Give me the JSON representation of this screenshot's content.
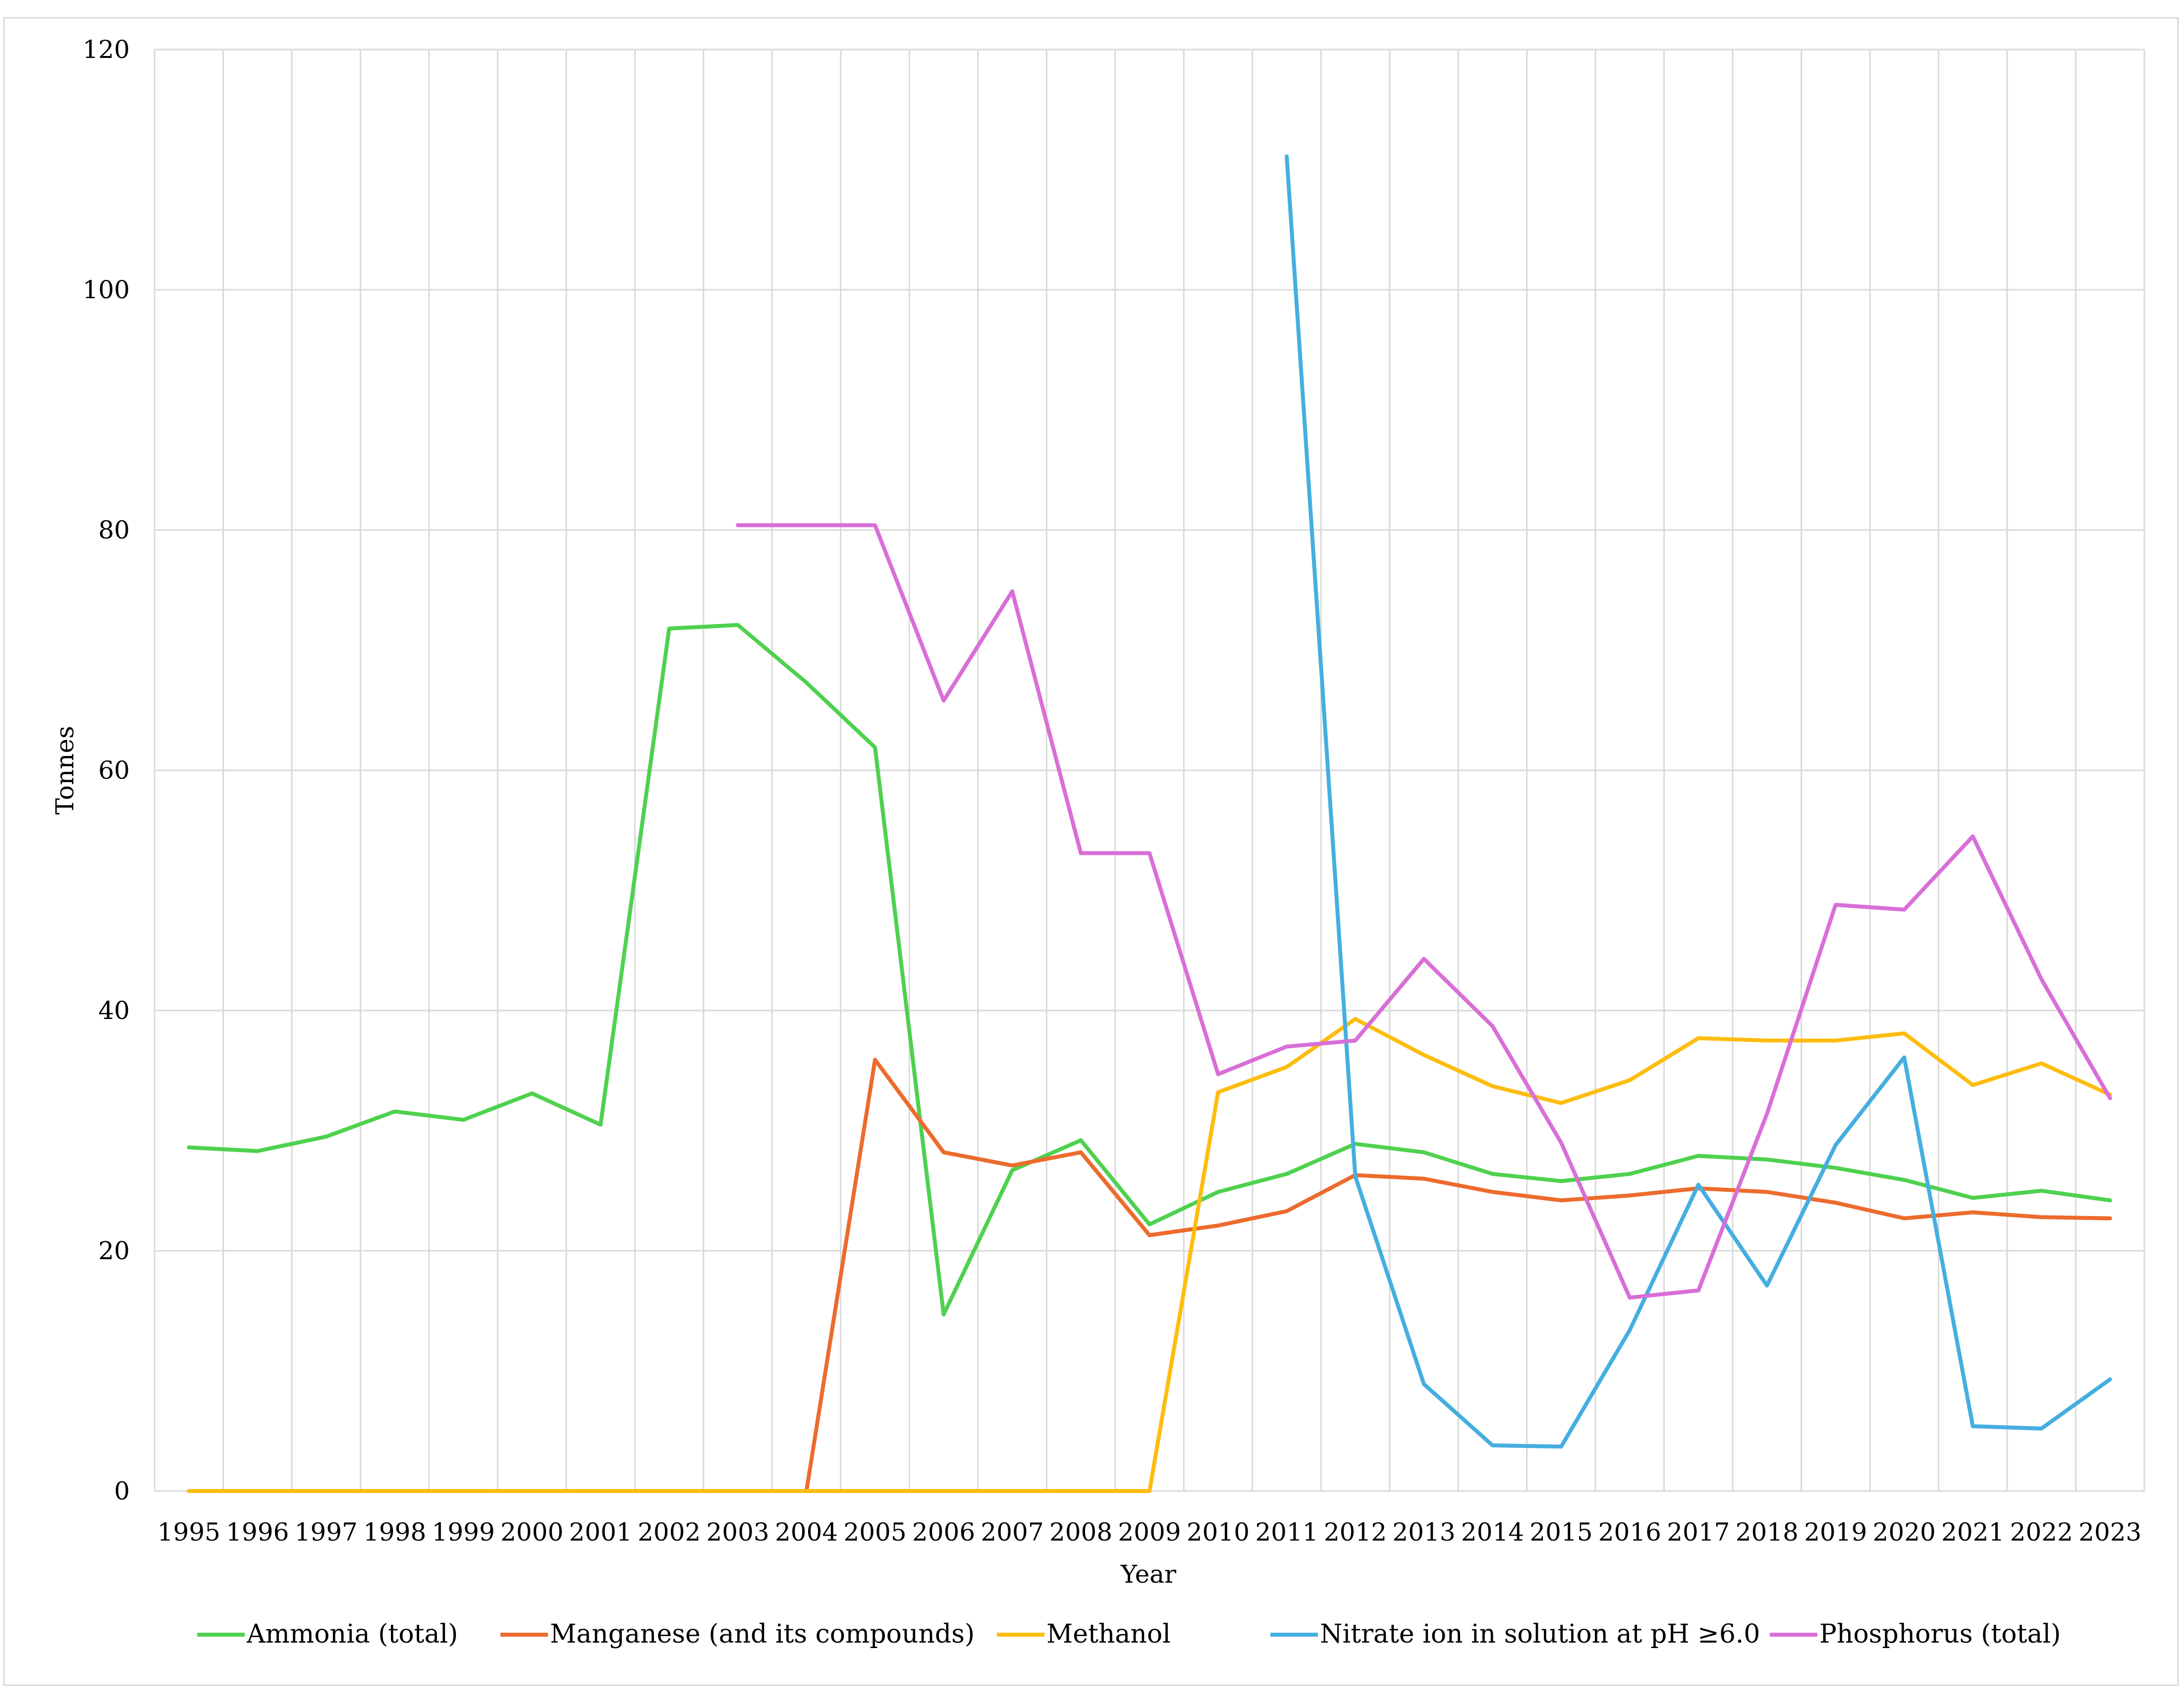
{
  "chart_data": {
    "type": "line",
    "xlabel": "Year",
    "ylabel": "Tonnes",
    "ylim": [
      0,
      120
    ],
    "yticks": [
      "0",
      "20",
      "40",
      "60",
      "80",
      "100",
      "120"
    ],
    "grid": true,
    "legend_position": "bottom",
    "x": [
      "1995",
      "1996",
      "1997",
      "1998",
      "1999",
      "2000",
      "2001",
      "2002",
      "2003",
      "2004",
      "2005",
      "2006",
      "2007",
      "2008",
      "2009",
      "2010",
      "2011",
      "2012",
      "2013",
      "2014",
      "2015",
      "2016",
      "2017",
      "2018",
      "2019",
      "2020",
      "2021",
      "2022",
      "2023"
    ],
    "series": [
      {
        "name": "Ammonia (total)",
        "color": "#4fd14f",
        "values": [
          28.6,
          28.3,
          29.5,
          31.6,
          30.9,
          33.1,
          30.5,
          71.8,
          72.1,
          67.3,
          61.9,
          14.7,
          26.7,
          29.2,
          22.2,
          24.9,
          26.4,
          28.9,
          28.2,
          26.4,
          25.8,
          26.4,
          27.9,
          27.6,
          26.9,
          25.9,
          24.4,
          25.0,
          24.2
        ]
      },
      {
        "name": "Manganese (and its compounds)",
        "color": "#ec6b2d",
        "values": [
          null,
          null,
          null,
          null,
          null,
          null,
          null,
          null,
          null,
          0.0,
          35.9,
          28.2,
          27.1,
          28.2,
          21.3,
          22.1,
          23.3,
          26.3,
          26.0,
          24.9,
          24.2,
          24.6,
          25.2,
          24.9,
          24.0,
          22.7,
          23.2,
          22.8,
          22.7
        ]
      },
      {
        "name": "Methanol",
        "color": "#fdbd10",
        "values": [
          0.0,
          0.0,
          0.0,
          0.0,
          0.0,
          0.0,
          0.0,
          0.0,
          0.0,
          0.0,
          0.0,
          0.0,
          0.0,
          0.0,
          0.0,
          33.2,
          35.3,
          39.3,
          36.3,
          33.7,
          32.3,
          34.2,
          37.7,
          37.5,
          37.5,
          38.1,
          33.8,
          35.6,
          33.0
        ]
      },
      {
        "name": "Nitrate ion in solution at pH ≥6.0",
        "color": "#45aee0",
        "values": [
          null,
          null,
          null,
          null,
          null,
          null,
          null,
          null,
          null,
          null,
          null,
          null,
          null,
          null,
          null,
          null,
          111.1,
          26.2,
          8.9,
          3.8,
          3.7,
          13.4,
          25.5,
          17.1,
          28.8,
          36.1,
          5.4,
          5.2,
          9.3
        ]
      },
      {
        "name": "Phosphorus (total)",
        "color": "#d86fd6",
        "values": [
          null,
          null,
          null,
          null,
          null,
          null,
          null,
          null,
          80.4,
          80.4,
          80.4,
          65.8,
          74.9,
          53.1,
          53.1,
          34.7,
          37.0,
          37.5,
          44.3,
          38.7,
          29.0,
          16.1,
          16.7,
          31.4,
          48.8,
          48.4,
          54.5,
          42.6,
          32.7
        ]
      }
    ]
  }
}
